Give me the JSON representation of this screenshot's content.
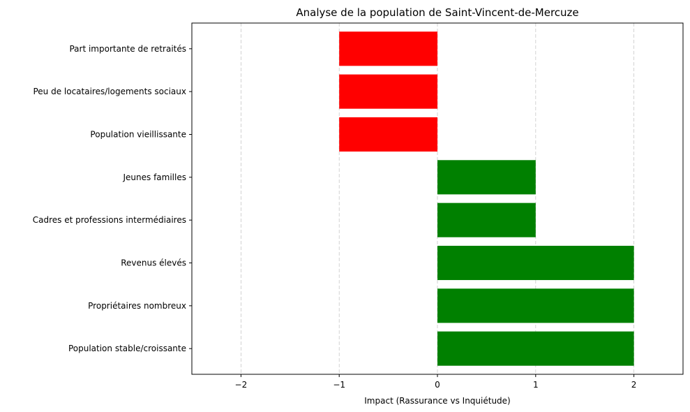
{
  "chart_data": {
    "type": "bar",
    "orientation": "horizontal",
    "title": "Analyse de la population de Saint-Vincent-de-Mercuze",
    "xlabel": "Impact (Rassurance vs Inquiétude)",
    "ylabel": "",
    "xlim": [
      -2.5,
      2.5
    ],
    "xticks": [
      -2,
      -1,
      0,
      1,
      2
    ],
    "xtick_labels": [
      "−2",
      "−1",
      "0",
      "1",
      "2"
    ],
    "grid": "x-dashed",
    "categories": [
      "Population stable/croissante",
      "Propriétaires nombreux",
      "Revenus élevés",
      "Cadres et professions intermédiaires",
      "Jeunes familles",
      "Population vieillissante",
      "Peu de locataires/logements sociaux",
      "Part importante de retraités"
    ],
    "values": [
      2,
      2,
      2,
      1,
      1,
      -1,
      -1,
      -1
    ],
    "colors": {
      "positive": "#008000",
      "negative": "#ff0000"
    }
  }
}
